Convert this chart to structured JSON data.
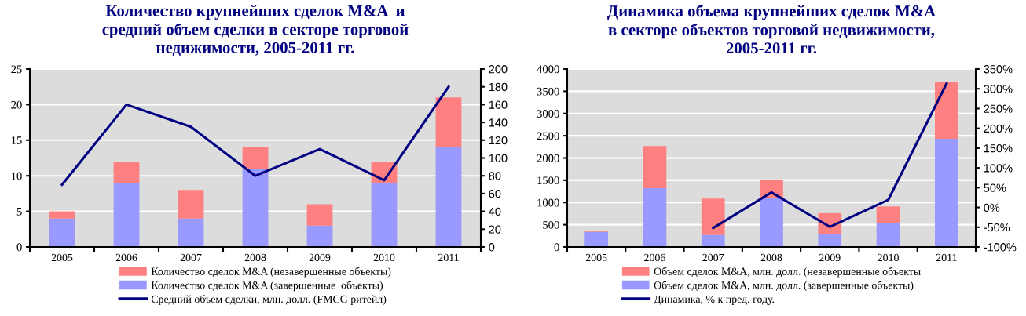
{
  "chart_data": [
    {
      "type": "bar",
      "title": "Количество крупнейших сделок M&A  и\nсредний объем сделки в секторе торговой\nнедижимости, 2005-2011 гг.",
      "stacked": true,
      "categories": [
        "2005",
        "2006",
        "2007",
        "2008",
        "2009",
        "2010",
        "2011"
      ],
      "series": [
        {
          "name": "Количество сделок M&A (завершенные  объекты)",
          "color": "#9999ff",
          "values": [
            4,
            9,
            4,
            11,
            3,
            9,
            14
          ]
        },
        {
          "name": "Количество сделок M&A (незавершенные объекты)",
          "color": "#ff8080",
          "values": [
            1,
            3,
            4,
            3,
            3,
            3,
            7
          ]
        },
        {
          "name": "Средний объем сделки, млн. долл. (FMCG ритейл)",
          "type": "line",
          "axis": "y2",
          "color": "#000080",
          "values": [
            70,
            160,
            135,
            80,
            110,
            75,
            180
          ]
        }
      ],
      "ylim": [
        0,
        25
      ],
      "yticks": [
        0,
        5,
        10,
        15,
        20,
        25
      ],
      "y2lim": [
        0,
        200
      ],
      "y2ticks": [
        0,
        20,
        40,
        60,
        80,
        100,
        120,
        140,
        160,
        180,
        200
      ],
      "grid": "y",
      "legend": "bottom",
      "marker": "none"
    },
    {
      "type": "bar",
      "title": "Динамика объема крупнейших сделок M&A\nв секторе объектов торговой недвижимости,\n2005-2011 гг.",
      "stacked": true,
      "categories": [
        "2005",
        "2006",
        "2007",
        "2008",
        "2009",
        "2010",
        "2011"
      ],
      "series": [
        {
          "name": "Объем сделок M&A, млн. долл. (завершенные объекты)",
          "color": "#9999ff",
          "values": [
            340,
            1320,
            270,
            1100,
            300,
            540,
            2430
          ]
        },
        {
          "name": "Объем сделок M&A, млн. долл. (незавершенные объекты",
          "color": "#ff8080",
          "values": [
            30,
            950,
            820,
            400,
            460,
            370,
            1290
          ]
        },
        {
          "name": "Динамика, % к пред. году.",
          "type": "line",
          "axis": "y2",
          "color": "#000080",
          "values": [
            null,
            null,
            -52,
            38,
            -49,
            19,
            313
          ]
        }
      ],
      "ylim": [
        0,
        4000
      ],
      "yticks": [
        0,
        500,
        1000,
        1500,
        2000,
        2500,
        3000,
        3500,
        4000
      ],
      "y2lim": [
        -100,
        350
      ],
      "y2ticks": [
        {
          "value": -100,
          "label": "-100%"
        },
        {
          "value": -50,
          "label": "-50%"
        },
        {
          "value": 0,
          "label": "0%"
        },
        {
          "value": 50,
          "label": "50%"
        },
        {
          "value": 100,
          "label": "100%"
        },
        {
          "value": 150,
          "label": "150%"
        },
        {
          "value": 200,
          "label": "200%"
        },
        {
          "value": 250,
          "label": "250%"
        },
        {
          "value": 300,
          "label": "300%"
        },
        {
          "value": 350,
          "label": "350%"
        }
      ],
      "grid": "y",
      "legend": "bottom",
      "marker": "none"
    }
  ]
}
